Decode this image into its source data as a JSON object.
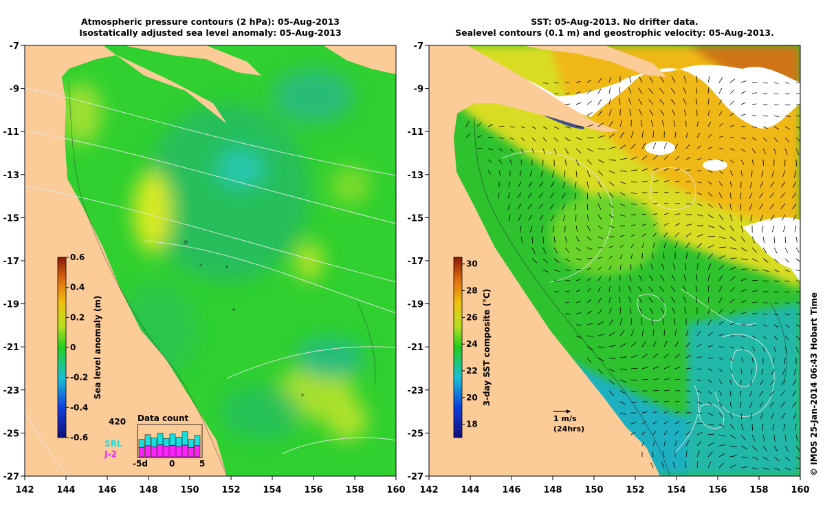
{
  "left_panel": {
    "title_line1": "Atmospheric pressure contours (2 hPa): 05-Aug-2013",
    "title_line2": "Isostatically adjusted sea level anomaly: 05-Aug-2013",
    "x_ticks": [
      "142",
      "144",
      "146",
      "148",
      "150",
      "152",
      "154",
      "156",
      "158",
      "160"
    ],
    "y_ticks": [
      "-7",
      "-9",
      "-11",
      "-13",
      "-15",
      "-17",
      "-19",
      "-21",
      "-23",
      "-25",
      "-27"
    ],
    "colorbar": {
      "label": "Sea level anomaly (m)",
      "ticks": [
        "0.6",
        "0.4",
        "0.2",
        "0",
        "-0.2",
        "-0.4",
        "-0.6"
      ],
      "range": [
        -0.6,
        0.6
      ]
    },
    "inset": {
      "title": "Data count",
      "max_label": "420",
      "series_top": "SRL",
      "series_bottom": "J-2",
      "x_labels": [
        "-5d",
        "0",
        "5"
      ],
      "top_color": "#19e0e0",
      "bottom_color": "#ff22ff"
    }
  },
  "right_panel": {
    "title_line1": "SST: 05-Aug-2013. No drifter data.",
    "title_line2": "Sealevel contours (0.1 m) and geostrophic velocity: 05-Aug-2013.",
    "x_ticks": [
      "142",
      "144",
      "146",
      "148",
      "150",
      "152",
      "154",
      "156",
      "158",
      "160"
    ],
    "y_ticks": [
      "-7",
      "-9",
      "-11",
      "-13",
      "-15",
      "-17",
      "-19",
      "-21",
      "-23",
      "-25",
      "-27"
    ],
    "colorbar": {
      "label": "3-day SST composite (°C)",
      "ticks": [
        "30",
        "28",
        "26",
        "24",
        "22",
        "20",
        "18"
      ],
      "range": [
        17,
        30.5
      ]
    },
    "scale_arrow": {
      "label_line1": "1 m/s",
      "label_line2": "(24hrs)"
    }
  },
  "credit": "© IMOS 25-Jan-2014 06:43 Hobart Time",
  "colors": {
    "land": "#fbcb98",
    "ocean_sla": "#2fd02f",
    "ocean_sst_warm": "#f2b714",
    "ocean_sst_mid": "#2fc22f",
    "ocean_sst_cool": "#19b8d8",
    "cloud": "#ffffff",
    "contour": "#e8e8e8"
  }
}
